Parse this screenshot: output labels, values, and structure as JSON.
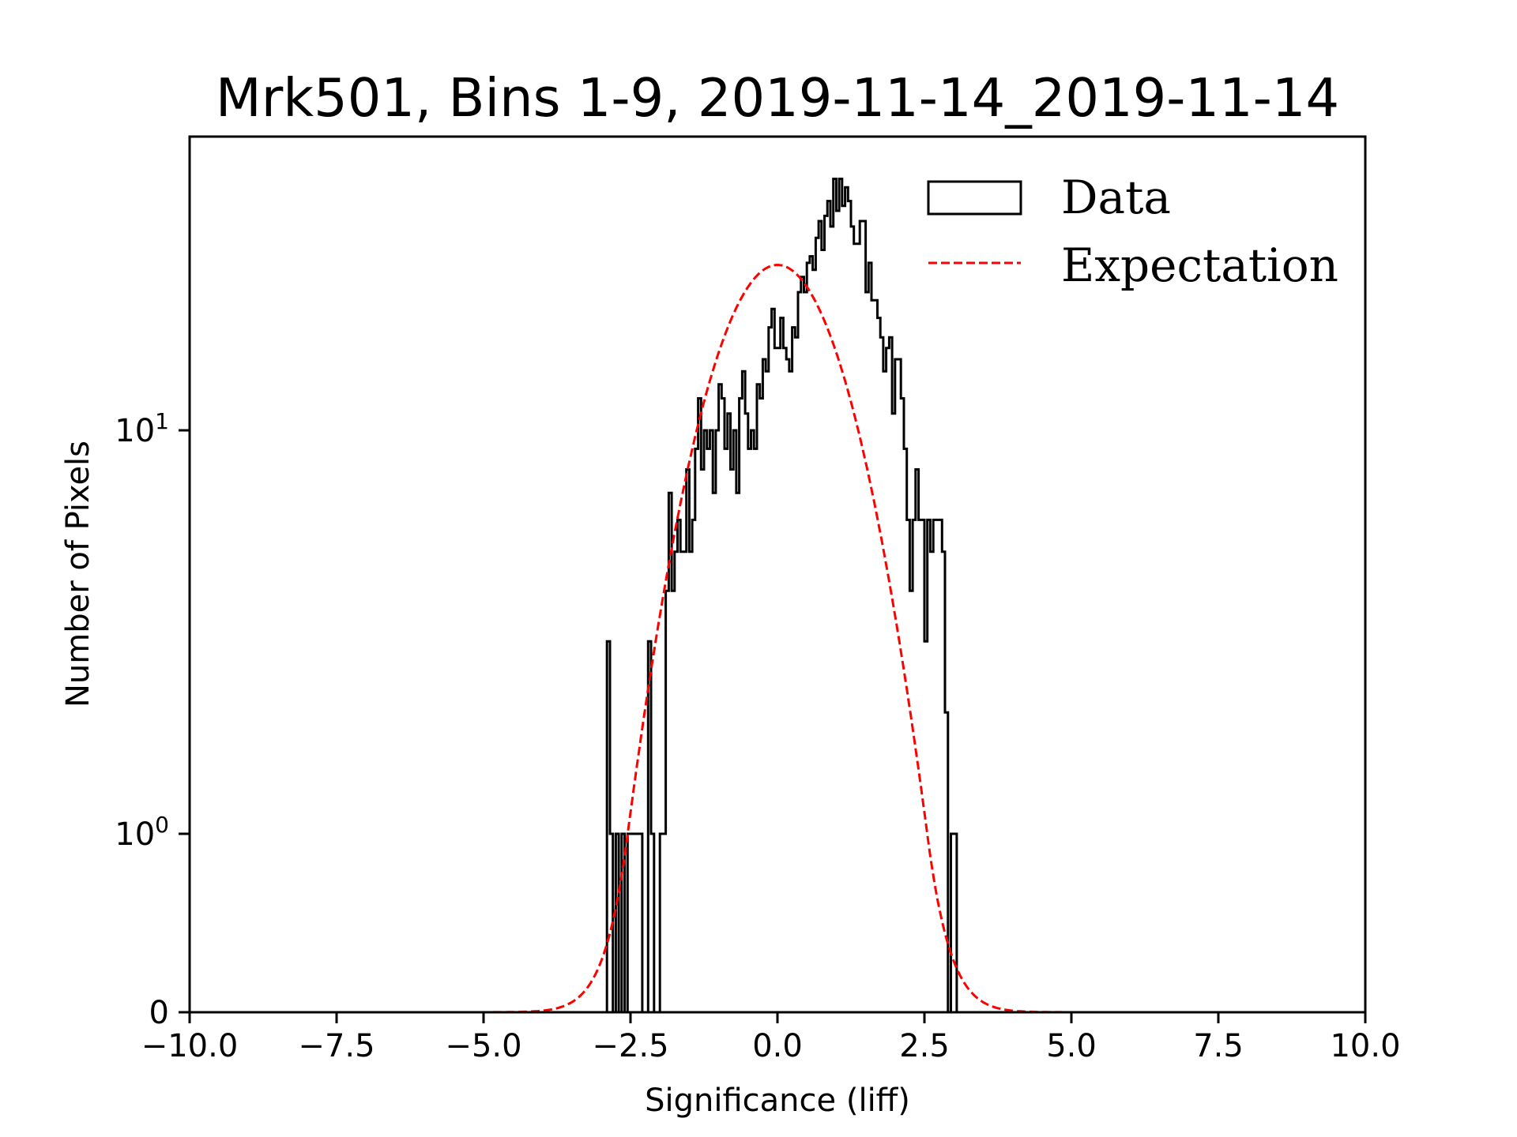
{
  "chart_data": {
    "type": "bar",
    "subtype": "step-histogram-with-expectation-curve",
    "title": "Mrk501, Bins 1-9, 2019-11-14_2019-11-14",
    "xlabel": "Significance (liff)",
    "ylabel": "Number of Pixels",
    "xlim": [
      -10,
      10
    ],
    "ylim": [
      0,
      53
    ],
    "yscale": "symlog",
    "yscale_linthresh": 1,
    "xticks": [
      -10.0,
      -7.5,
      -5.0,
      -2.5,
      0.0,
      2.5,
      5.0,
      7.5,
      10.0
    ],
    "xtick_labels": [
      "−10.0",
      "−7.5",
      "−5.0",
      "−2.5",
      "0.0",
      "2.5",
      "5.0",
      "7.5",
      "10.0"
    ],
    "yticks": [
      0,
      1,
      10
    ],
    "ytick_labels": [
      {
        "base": "0",
        "exp": ""
      },
      {
        "base": "10",
        "exp": "0"
      },
      {
        "base": "10",
        "exp": "1"
      }
    ],
    "grid": false,
    "legend": {
      "placement": "top-right",
      "entries": [
        {
          "label": "Data",
          "style": "step",
          "color": "#000000"
        },
        {
          "label": "Expectation",
          "style": "dashed",
          "color": "#ff0000"
        }
      ]
    },
    "series": [
      {
        "name": "Data",
        "kind": "histogram",
        "color": "#000000",
        "bin_edges_start": -3.0,
        "bin_width": 0.05,
        "counts": [
          0,
          0,
          3,
          1,
          0,
          1,
          0,
          1,
          0,
          1,
          1,
          1,
          1,
          1,
          0,
          0,
          3,
          1,
          0,
          0,
          1,
          1,
          4,
          7,
          4,
          5,
          6,
          5,
          5,
          8,
          5,
          6,
          9,
          12,
          8,
          10,
          9,
          10,
          7,
          10,
          13,
          12,
          9,
          11,
          8,
          10,
          7,
          12,
          14,
          11,
          9,
          10,
          9,
          13,
          12,
          15,
          14,
          18,
          20,
          16,
          16,
          19,
          16,
          15,
          14,
          18,
          17,
          22,
          24,
          22,
          26,
          27,
          25,
          30,
          33,
          28,
          34,
          37,
          32,
          42,
          35,
          42,
          36,
          40,
          37,
          32,
          29,
          29,
          33,
          33,
          22,
          26,
          21,
          21,
          19,
          17,
          14,
          16,
          17,
          11,
          15,
          15,
          12,
          9,
          6,
          4,
          6,
          8,
          6,
          6,
          3,
          6,
          5,
          6,
          6,
          6,
          5,
          2,
          0,
          1,
          1,
          0
        ]
      },
      {
        "name": "Expectation",
        "kind": "gaussian",
        "color": "#ff0000",
        "amplitude": 25.7,
        "mean": 0.0,
        "sigma": 1.0
      }
    ]
  }
}
